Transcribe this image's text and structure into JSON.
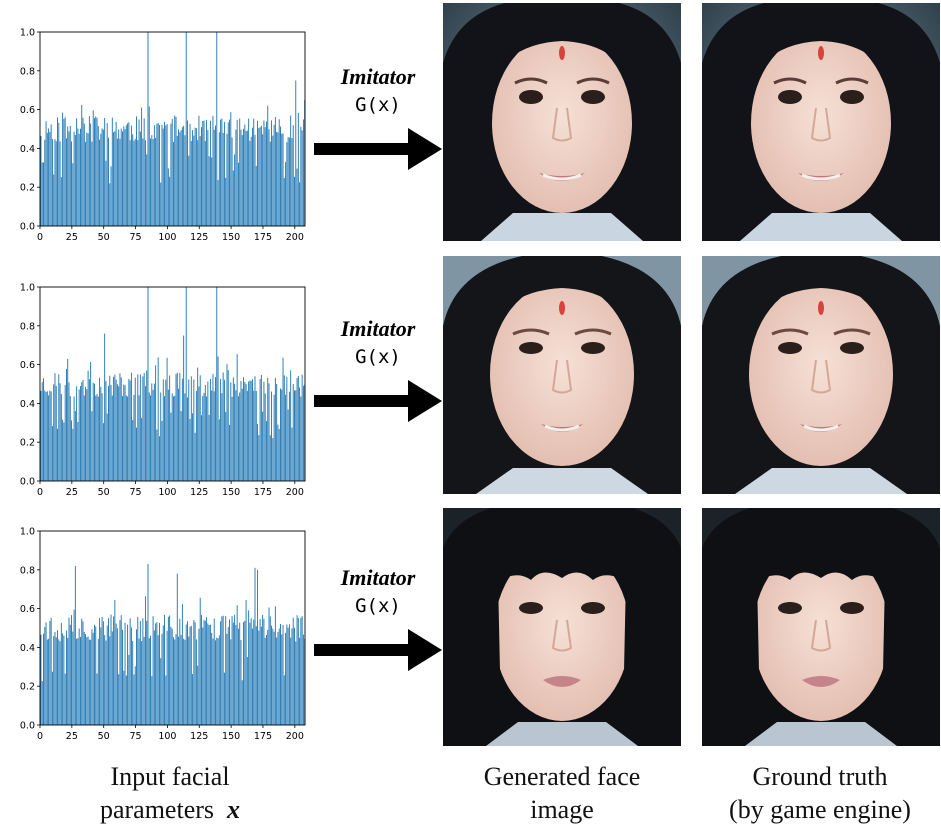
{
  "rows": [
    {
      "chart_id": "chart-1",
      "imitator_label": "Imitator",
      "function_label": "G(x)"
    },
    {
      "chart_id": "chart-2",
      "imitator_label": "Imitator",
      "function_label": "G(x)"
    },
    {
      "chart_id": "chart-3",
      "imitator_label": "Imitator",
      "function_label": "G(x)"
    }
  ],
  "captions": {
    "input_line1": "Input facial",
    "input_line2": "parameters",
    "input_var": "x",
    "generated_line1": "Generated face",
    "generated_line2": "image",
    "truth_line1": "Ground truth",
    "truth_line2": "(by game engine)"
  },
  "colors": {
    "bar": "#1f77b4",
    "arrow": "#000000",
    "hair": "#14151a",
    "skin": "#f1d4c8",
    "lip": "#c9767a",
    "forehead_mark": "#d8423a"
  },
  "chart_data": [
    {
      "type": "bar",
      "xlim": [
        0,
        208
      ],
      "ylim": [
        0.0,
        1.0
      ],
      "xticks": [
        "0",
        "25",
        "50",
        "75",
        "100",
        "125",
        "150",
        "175",
        "200"
      ],
      "yticks": [
        "0.0",
        "0.2",
        "0.4",
        "0.6",
        "0.8",
        "1.0"
      ],
      "n_bars": 208,
      "base": 0.5,
      "spikes": [
        {
          "x": 84,
          "y": 1.0
        },
        {
          "x": 114,
          "y": 1.0
        },
        {
          "x": 138,
          "y": 1.0
        },
        {
          "x": 200,
          "y": 0.75
        },
        {
          "x": 207,
          "y": 0.65
        }
      ],
      "seed": 11
    },
    {
      "type": "bar",
      "xlim": [
        0,
        208
      ],
      "ylim": [
        0.0,
        1.0
      ],
      "xticks": [
        "0",
        "25",
        "50",
        "75",
        "100",
        "125",
        "150",
        "175",
        "200"
      ],
      "yticks": [
        "0.0",
        "0.2",
        "0.4",
        "0.6",
        "0.8",
        "1.0"
      ],
      "n_bars": 208,
      "base": 0.5,
      "spikes": [
        {
          "x": 84,
          "y": 1.0
        },
        {
          "x": 114,
          "y": 1.0
        },
        {
          "x": 138,
          "y": 1.0
        },
        {
          "x": 50,
          "y": 0.76
        },
        {
          "x": 112,
          "y": 0.75
        }
      ],
      "seed": 23
    },
    {
      "type": "bar",
      "xlim": [
        0,
        208
      ],
      "ylim": [
        0.0,
        1.0
      ],
      "xticks": [
        "0",
        "25",
        "50",
        "75",
        "100",
        "125",
        "150",
        "175",
        "200"
      ],
      "yticks": [
        "0.0",
        "0.2",
        "0.4",
        "0.6",
        "0.8",
        "1.0"
      ],
      "n_bars": 208,
      "base": 0.5,
      "spikes": [
        {
          "x": 27,
          "y": 0.82
        },
        {
          "x": 84,
          "y": 0.83
        },
        {
          "x": 107,
          "y": 0.78
        },
        {
          "x": 168,
          "y": 0.81
        },
        {
          "x": 170,
          "y": 0.8
        }
      ],
      "seed": 37
    }
  ]
}
